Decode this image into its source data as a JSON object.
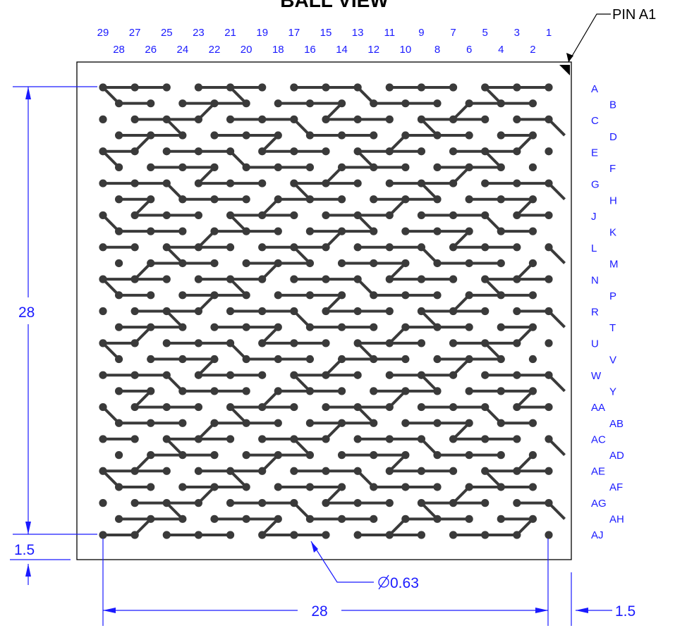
{
  "title": "BALL VIEW",
  "pin_marker_label": "PIN A1",
  "column_labels_top": [
    "29",
    "27",
    "25",
    "23",
    "21",
    "19",
    "17",
    "15",
    "13",
    "11",
    "9",
    "7",
    "5",
    "3",
    "1"
  ],
  "column_labels_bottom": [
    "28",
    "26",
    "24",
    "22",
    "20",
    "18",
    "16",
    "14",
    "12",
    "10",
    "8",
    "6",
    "4",
    "2"
  ],
  "row_labels": [
    "A",
    "B",
    "C",
    "D",
    "E",
    "F",
    "G",
    "H",
    "J",
    "K",
    "L",
    "M",
    "N",
    "P",
    "R",
    "T",
    "U",
    "V",
    "W",
    "Y",
    "AA",
    "AB",
    "AC",
    "AD",
    "AE",
    "AF",
    "AG",
    "AH",
    "AJ"
  ],
  "grid": {
    "columns": 15,
    "rows": 29
  },
  "dimensions": {
    "height": "28",
    "width": "28",
    "edge_bottom": "1.5",
    "edge_right": "1.5",
    "ball_diameter": "0.63"
  },
  "colors": {
    "dimension": "#1a1aff",
    "ball": "#3a3a3a",
    "outline": "#000000"
  }
}
